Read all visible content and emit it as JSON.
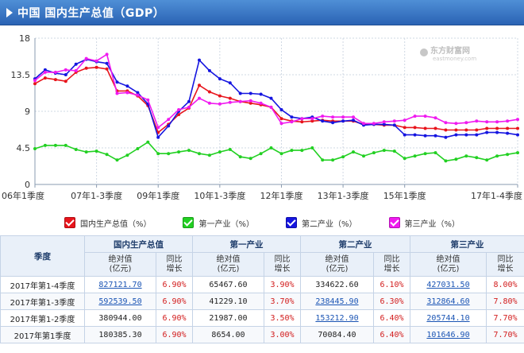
{
  "header": {
    "title": "中国 国内生产总值（GDP）",
    "title_icon": "triangle-right-icon"
  },
  "watermark": {
    "brand": "东方财富网",
    "url": "eastmoney.com"
  },
  "chart_data": {
    "type": "line",
    "title": "",
    "xlabel": "",
    "ylabel": "",
    "ylim": [
      0,
      18
    ],
    "yticks": [
      0,
      4.5,
      9,
      13.5,
      18
    ],
    "grid": true,
    "legend_position": "bottom",
    "categories": [
      "06年1季度",
      "06年1-2季度",
      "06年1-3季度",
      "06年1-4季度",
      "07年1季度",
      "07年1-2季度",
      "07年1-3季度",
      "07年1-4季度",
      "08年1季度",
      "08年1-2季度",
      "08年1-3季度",
      "08年1-4季度",
      "09年1季度",
      "09年1-2季度",
      "09年1-3季度",
      "09年1-4季度",
      "10年1季度",
      "10年1-2季度",
      "10年1-3季度",
      "10年1-4季度",
      "11年1季度",
      "11年1-2季度",
      "11年1-3季度",
      "11年1-4季度",
      "12年1季度",
      "12年1-2季度",
      "12年1-3季度",
      "12年1-4季度",
      "13年1季度",
      "13年1-2季度",
      "13年1-3季度",
      "13年1-4季度",
      "14年1季度",
      "14年1-2季度",
      "14年1-3季度",
      "14年1-4季度",
      "15年1季度",
      "15年1-2季度",
      "15年1-3季度",
      "15年1-4季度",
      "16年1季度",
      "16年1-2季度",
      "16年1-3季度",
      "16年1-4季度",
      "17年1季度",
      "17年1-2季度",
      "17年1-3季度",
      "17年1-4季度"
    ],
    "tick_labels": [
      "06年1季度",
      "07年1-3季度",
      "09年1季度",
      "10年1-3季度",
      "12年1季度",
      "13年1-3季度",
      "15年1季度",
      "17年1-4季度"
    ],
    "tick_indices": [
      0,
      6,
      12,
      18,
      24,
      30,
      36,
      47
    ],
    "series": [
      {
        "name": "国内生产总值（%）",
        "color": "#e8141b",
        "values": [
          12.4,
          13.1,
          12.9,
          12.7,
          13.8,
          14.3,
          14.4,
          14.2,
          11.5,
          11.5,
          10.9,
          9.7,
          6.4,
          7.4,
          8.6,
          9.4,
          12.2,
          11.4,
          10.9,
          10.6,
          10.2,
          10.0,
          9.8,
          9.5,
          8.1,
          7.8,
          7.7,
          7.8,
          7.9,
          7.8,
          7.8,
          7.8,
          7.4,
          7.4,
          7.3,
          7.3,
          7.0,
          7.0,
          6.9,
          6.9,
          6.7,
          6.7,
          6.7,
          6.7,
          6.9,
          6.9,
          6.9,
          6.9
        ]
      },
      {
        "name": "第一产业（%）",
        "color": "#22d022",
        "values": [
          4.4,
          4.8,
          4.8,
          4.8,
          4.3,
          4.0,
          4.1,
          3.7,
          3.0,
          3.6,
          4.4,
          5.2,
          3.8,
          3.8,
          4.0,
          4.2,
          3.8,
          3.6,
          4.0,
          4.3,
          3.4,
          3.2,
          3.8,
          4.5,
          3.8,
          4.2,
          4.2,
          4.5,
          3.0,
          3.0,
          3.4,
          4.0,
          3.5,
          3.9,
          4.2,
          4.1,
          3.2,
          3.5,
          3.8,
          3.9,
          2.9,
          3.1,
          3.5,
          3.3,
          3.0,
          3.5,
          3.7,
          3.9
        ]
      },
      {
        "name": "第二产业（%）",
        "color": "#1515e0",
        "values": [
          13.0,
          14.1,
          13.7,
          13.5,
          14.8,
          15.4,
          15.1,
          14.9,
          12.6,
          12.1,
          11.3,
          9.9,
          5.8,
          7.2,
          9.0,
          10.2,
          15.3,
          14.0,
          13.0,
          12.5,
          11.2,
          11.2,
          11.1,
          10.6,
          9.2,
          8.3,
          8.1,
          8.3,
          7.8,
          7.6,
          7.8,
          7.9,
          7.3,
          7.4,
          7.4,
          7.3,
          6.1,
          6.1,
          6.0,
          6.0,
          5.8,
          6.1,
          6.1,
          6.1,
          6.4,
          6.4,
          6.3,
          6.1
        ]
      },
      {
        "name": "第三产业（%）",
        "color": "#f01af0",
        "values": [
          12.8,
          13.8,
          13.8,
          14.1,
          14.0,
          15.5,
          15.2,
          16.0,
          11.2,
          11.3,
          11.0,
          10.4,
          7.0,
          8.0,
          9.2,
          9.5,
          10.6,
          10.0,
          9.9,
          10.1,
          10.2,
          10.3,
          10.0,
          9.5,
          7.5,
          7.7,
          8.1,
          8.1,
          8.4,
          8.3,
          8.3,
          8.3,
          7.5,
          7.5,
          7.7,
          7.8,
          7.9,
          8.4,
          8.4,
          8.2,
          7.6,
          7.5,
          7.6,
          7.8,
          7.7,
          7.7,
          7.8,
          8.0
        ]
      }
    ]
  },
  "legend": [
    {
      "label": "国内生产总值（%）",
      "color": "#e8141b"
    },
    {
      "label": "第一产业（%）",
      "color": "#22d022"
    },
    {
      "label": "第二产业（%）",
      "color": "#1515e0"
    },
    {
      "label": "第三产业（%）",
      "color": "#f01af0"
    }
  ],
  "table": {
    "quarter_header": "季度",
    "groups": [
      "国内生产总值",
      "第一产业",
      "第二产业",
      "第三产业"
    ],
    "abs_header_1": "绝对值",
    "abs_header_2": "(亿元)",
    "yoy_header_1": "同比",
    "yoy_header_2": "增长",
    "rows": [
      {
        "quarter": "2017年第1-4季度",
        "gdp_abs": "827121.70",
        "gdp_yoy": "6.90%",
        "p1_abs": "65467.60",
        "p1_yoy": "3.90%",
        "p2_abs": "334622.60",
        "p2_yoy": "6.10%",
        "p3_abs": "427031.50",
        "p3_yoy": "8.00%"
      },
      {
        "quarter": "2017年第1-3季度",
        "gdp_abs": "592539.50",
        "gdp_yoy": "6.90%",
        "p1_abs": "41229.10",
        "p1_yoy": "3.70%",
        "p2_abs": "238445.90",
        "p2_yoy": "6.30%",
        "p3_abs": "312864.60",
        "p3_yoy": "7.80%"
      },
      {
        "quarter": "2017年第1-2季度",
        "gdp_abs": "380944.00",
        "gdp_yoy": "6.90%",
        "p1_abs": "21987.00",
        "p1_yoy": "3.50%",
        "p2_abs": "153212.90",
        "p2_yoy": "6.40%",
        "p3_abs": "205744.10",
        "p3_yoy": "7.70%"
      },
      {
        "quarter": "2017年第1季度",
        "gdp_abs": "180385.30",
        "gdp_yoy": "6.90%",
        "p1_abs": "8654.00",
        "p1_yoy": "3.00%",
        "p2_abs": "70084.40",
        "p2_yoy": "6.40%",
        "p3_abs": "101646.90",
        "p3_yoy": "7.70%"
      }
    ]
  }
}
